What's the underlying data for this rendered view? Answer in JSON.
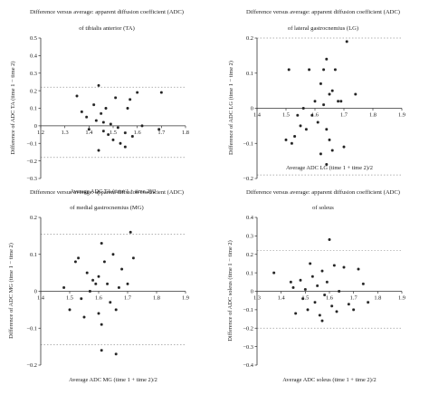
{
  "chart_data": [
    {
      "type": "scatter",
      "title": "Difference versus average: apparent diffusion coefficient (ADC)",
      "subtitle": "of tibialis anterior (TA)",
      "xlabel": "Average ADC TA (time 1 + time 2)/2",
      "ylabel": "Difference of ADC TA (time 1 − time 2)",
      "xlim": [
        1.2,
        1.8
      ],
      "ylim": [
        -0.3,
        0.5
      ],
      "x_ticks": [
        "1.2",
        "1.3",
        "1.4",
        "1.5",
        "1.6",
        "1.7",
        "1.8"
      ],
      "y_ticks": [
        "0.5",
        "0.4",
        "0.3",
        "0.2",
        "0.1",
        "0",
        "−0.1",
        "−0.2",
        "−0.3"
      ],
      "x_tick_values": [
        1.2,
        1.3,
        1.4,
        1.5,
        1.6,
        1.7,
        1.8
      ],
      "y_tick_values": [
        0.5,
        0.4,
        0.3,
        0.2,
        0.1,
        0,
        -0.1,
        -0.2,
        -0.3
      ],
      "reference_lines": [
        0.22,
        -0.18
      ],
      "points": [
        {
          "x": 1.35,
          "y": 0.17
        },
        {
          "x": 1.37,
          "y": 0.08
        },
        {
          "x": 1.39,
          "y": 0.05
        },
        {
          "x": 1.4,
          "y": -0.02
        },
        {
          "x": 1.42,
          "y": 0.12
        },
        {
          "x": 1.43,
          "y": 0.03
        },
        {
          "x": 1.44,
          "y": 0.23
        },
        {
          "x": 1.45,
          "y": 0.07
        },
        {
          "x": 1.46,
          "y": 0.02
        },
        {
          "x": 1.46,
          "y": -0.03
        },
        {
          "x": 1.47,
          "y": 0.1
        },
        {
          "x": 1.48,
          "y": -0.05
        },
        {
          "x": 1.49,
          "y": 0.01
        },
        {
          "x": 1.5,
          "y": -0.08
        },
        {
          "x": 1.51,
          "y": 0.16
        },
        {
          "x": 1.52,
          "y": -0.01
        },
        {
          "x": 1.53,
          "y": -0.1
        },
        {
          "x": 1.55,
          "y": -0.04
        },
        {
          "x": 1.56,
          "y": 0.1
        },
        {
          "x": 1.57,
          "y": 0.15
        },
        {
          "x": 1.58,
          "y": -0.06
        },
        {
          "x": 1.6,
          "y": 0.19
        },
        {
          "x": 1.44,
          "y": -0.14
        },
        {
          "x": 1.62,
          "y": 0.0
        },
        {
          "x": 1.69,
          "y": -0.02
        },
        {
          "x": 1.7,
          "y": 0.19
        },
        {
          "x": 1.55,
          "y": -0.12
        }
      ]
    },
    {
      "type": "scatter",
      "title": "Difference versus average: apparent diffusion coefficient (ADC)",
      "subtitle": "of lateral gastrocnemius (LG)",
      "xlabel": "Average ADC LG (time 1 + time 2)/2",
      "ylabel": "Difference of ADC LG (time 1 − time 2)",
      "xlim": [
        1.4,
        1.9
      ],
      "ylim": [
        -0.2,
        0.2
      ],
      "x_ticks": [
        "1.4",
        "1.5",
        "1.6",
        "1.7",
        "1.8",
        "1.9"
      ],
      "y_ticks": [
        "0.2",
        "0.1",
        "0",
        "−0.1",
        "−0.2"
      ],
      "x_tick_values": [
        1.4,
        1.5,
        1.6,
        1.7,
        1.8,
        1.9
      ],
      "y_tick_values": [
        0.2,
        0.1,
        0,
        -0.1,
        -0.2
      ],
      "reference_lines": [
        0.2,
        -0.19
      ],
      "points": [
        {
          "x": 1.51,
          "y": 0.11
        },
        {
          "x": 1.5,
          "y": -0.09
        },
        {
          "x": 1.52,
          "y": -0.1
        },
        {
          "x": 1.53,
          "y": -0.08
        },
        {
          "x": 1.54,
          "y": -0.02
        },
        {
          "x": 1.55,
          "y": -0.05
        },
        {
          "x": 1.56,
          "y": 0.0
        },
        {
          "x": 1.57,
          "y": -0.06
        },
        {
          "x": 1.58,
          "y": 0.11
        },
        {
          "x": 1.59,
          "y": -0.02
        },
        {
          "x": 1.6,
          "y": 0.02
        },
        {
          "x": 1.61,
          "y": -0.04
        },
        {
          "x": 1.62,
          "y": -0.13
        },
        {
          "x": 1.63,
          "y": 0.11
        },
        {
          "x": 1.63,
          "y": 0.01
        },
        {
          "x": 1.64,
          "y": -0.06
        },
        {
          "x": 1.64,
          "y": 0.14
        },
        {
          "x": 1.65,
          "y": 0.04
        },
        {
          "x": 1.65,
          "y": -0.09
        },
        {
          "x": 1.66,
          "y": 0.05
        },
        {
          "x": 1.66,
          "y": -0.12
        },
        {
          "x": 1.67,
          "y": 0.11
        },
        {
          "x": 1.68,
          "y": 0.02
        },
        {
          "x": 1.69,
          "y": 0.02
        },
        {
          "x": 1.7,
          "y": -0.11
        },
        {
          "x": 1.71,
          "y": 0.19
        },
        {
          "x": 1.74,
          "y": 0.04
        },
        {
          "x": 1.64,
          "y": -0.16
        },
        {
          "x": 1.62,
          "y": 0.07
        }
      ]
    },
    {
      "type": "scatter",
      "title": "Difference versus average: apparent diffusion coefficient (ADC)",
      "subtitle": "of medial gastrocnemius (MG)",
      "xlabel": "Average ADC MG (time 1 + time 2)/2",
      "ylabel": "Difference of ADC MG (time 1 − time 2)",
      "xlim": [
        1.4,
        1.9
      ],
      "ylim": [
        -0.2,
        0.2
      ],
      "x_ticks": [
        "1.4",
        "1.5",
        "1.6",
        "1.7",
        "1.8",
        "1.9"
      ],
      "y_ticks": [
        "0.2",
        "0.1",
        "0",
        "−0.1",
        "−0.2"
      ],
      "x_tick_values": [
        1.4,
        1.5,
        1.6,
        1.7,
        1.8,
        1.9
      ],
      "y_tick_values": [
        0.2,
        0.1,
        0,
        -0.1,
        -0.2
      ],
      "reference_lines": [
        0.155,
        -0.145
      ],
      "points": [
        {
          "x": 1.48,
          "y": 0.01
        },
        {
          "x": 1.5,
          "y": -0.05
        },
        {
          "x": 1.52,
          "y": 0.08
        },
        {
          "x": 1.53,
          "y": 0.09
        },
        {
          "x": 1.54,
          "y": -0.02
        },
        {
          "x": 1.55,
          "y": -0.07
        },
        {
          "x": 1.56,
          "y": 0.05
        },
        {
          "x": 1.57,
          "y": 0.0
        },
        {
          "x": 1.58,
          "y": 0.03
        },
        {
          "x": 1.59,
          "y": 0.02
        },
        {
          "x": 1.6,
          "y": -0.06
        },
        {
          "x": 1.61,
          "y": 0.13
        },
        {
          "x": 1.61,
          "y": -0.09
        },
        {
          "x": 1.62,
          "y": 0.08
        },
        {
          "x": 1.63,
          "y": 0.02
        },
        {
          "x": 1.64,
          "y": -0.03
        },
        {
          "x": 1.65,
          "y": 0.1
        },
        {
          "x": 1.66,
          "y": -0.05
        },
        {
          "x": 1.67,
          "y": 0.01
        },
        {
          "x": 1.68,
          "y": 0.06
        },
        {
          "x": 1.7,
          "y": 0.02
        },
        {
          "x": 1.71,
          "y": 0.16
        },
        {
          "x": 1.72,
          "y": 0.09
        },
        {
          "x": 1.61,
          "y": -0.16
        },
        {
          "x": 1.66,
          "y": -0.17
        },
        {
          "x": 1.6,
          "y": 0.04
        }
      ]
    },
    {
      "type": "scatter",
      "title": "Difference versus average: apparent diffusion coefficient (ADC)",
      "subtitle": "of soleus",
      "xlabel": "Average ADC soleus (time 1 + time 2)/2",
      "ylabel": "Difference of ADC soleus (time 1 − time 2)",
      "xlim": [
        1.3,
        1.9
      ],
      "ylim": [
        -0.4,
        0.4
      ],
      "x_ticks": [
        "1.3",
        "1.4",
        "1.5",
        "1.6",
        "1.7",
        "1.8",
        "1.9"
      ],
      "y_ticks": [
        "0.4",
        "0.3",
        "0.2",
        "0.1",
        "0",
        "−0.1",
        "−0.2",
        "−0.3",
        "−0.4"
      ],
      "x_tick_values": [
        1.3,
        1.4,
        1.5,
        1.6,
        1.7,
        1.8,
        1.9
      ],
      "y_tick_values": [
        0.4,
        0.3,
        0.2,
        0.1,
        0,
        -0.1,
        -0.2,
        -0.3,
        -0.4
      ],
      "reference_lines": [
        0.22,
        -0.2
      ],
      "points": [
        {
          "x": 1.37,
          "y": 0.1
        },
        {
          "x": 1.44,
          "y": 0.05
        },
        {
          "x": 1.45,
          "y": 0.02
        },
        {
          "x": 1.46,
          "y": -0.12
        },
        {
          "x": 1.48,
          "y": 0.06
        },
        {
          "x": 1.49,
          "y": -0.04
        },
        {
          "x": 1.5,
          "y": 0.01
        },
        {
          "x": 1.51,
          "y": -0.1
        },
        {
          "x": 1.52,
          "y": 0.15
        },
        {
          "x": 1.53,
          "y": 0.08
        },
        {
          "x": 1.54,
          "y": -0.06
        },
        {
          "x": 1.55,
          "y": 0.03
        },
        {
          "x": 1.56,
          "y": -0.13
        },
        {
          "x": 1.57,
          "y": 0.11
        },
        {
          "x": 1.58,
          "y": -0.02
        },
        {
          "x": 1.59,
          "y": 0.05
        },
        {
          "x": 1.6,
          "y": 0.28
        },
        {
          "x": 1.61,
          "y": -0.08
        },
        {
          "x": 1.62,
          "y": 0.14
        },
        {
          "x": 1.63,
          "y": -0.11
        },
        {
          "x": 1.64,
          "y": 0.0
        },
        {
          "x": 1.66,
          "y": 0.13
        },
        {
          "x": 1.68,
          "y": -0.07
        },
        {
          "x": 1.7,
          "y": -0.1
        },
        {
          "x": 1.72,
          "y": 0.12
        },
        {
          "x": 1.74,
          "y": 0.04
        },
        {
          "x": 1.76,
          "y": -0.06
        },
        {
          "x": 1.57,
          "y": -0.16
        }
      ]
    }
  ]
}
